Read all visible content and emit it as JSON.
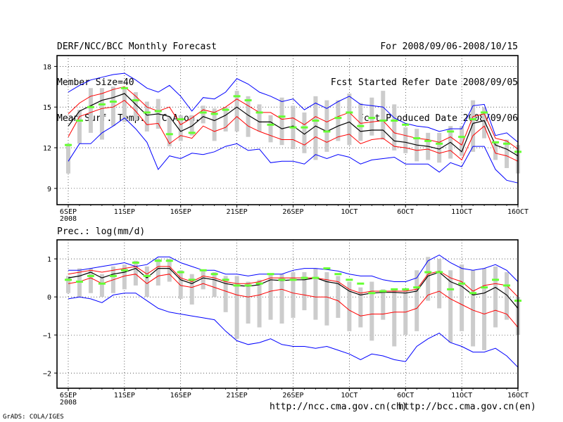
{
  "header": {
    "left_lines": [
      "DERF/NCC/BCC Monthly Forecast",
      "Member Size=40",
      "Mean Surf. Temp.: °C Anom."
    ],
    "right_lines": [
      "For 2008/09/06-2008/10/15",
      "Fcst Started Refer Date 2008/09/05",
      "Fcst Produced Date 2008/09/06"
    ]
  },
  "footer": {
    "url1": "http://ncc.cma.gov.cn(ch)",
    "url2": "http://bcc.cma.gov.cn(en)",
    "credit": "GrADS: COLA/IGES"
  },
  "colors": {
    "mean": "#000000",
    "band": "#ff0000",
    "envelope": "#0000ff",
    "box": "#cccccc",
    "obs": "#66ff33"
  },
  "chart_data": [
    {
      "type": "line",
      "title": "Mean Surf. Temp.: °C Anom.",
      "x_tick_labels": [
        "6SEP",
        "11SEP",
        "16SEP",
        "21SEP",
        "26SEP",
        "1OCT",
        "6OCT",
        "11OCT",
        "16OCT"
      ],
      "x_sub_label": "2008",
      "x_tick_days": [
        0,
        5,
        10,
        15,
        20,
        25,
        30,
        35,
        40
      ],
      "xlim": [
        -1,
        40
      ],
      "ylim": [
        7.8,
        18.8
      ],
      "y_ticks": [
        9,
        12,
        15,
        18
      ],
      "y_tick_labels": [
        "9",
        "12",
        "15",
        "18"
      ],
      "grid": true,
      "series": [
        {
          "name": "max",
          "color": "#0000ff",
          "values": [
            16.1,
            16.6,
            17.0,
            17.2,
            17.4,
            17.5,
            17.0,
            16.4,
            16.1,
            16.6,
            15.8,
            14.7,
            15.7,
            15.6,
            16.1,
            17.1,
            16.7,
            16.1,
            15.8,
            15.4,
            15.6,
            14.8,
            15.3,
            14.9,
            15.4,
            15.8,
            15.2,
            15.1,
            15.0,
            14.2,
            13.8,
            13.6,
            13.5,
            13.2,
            13.4,
            13.4,
            15.1,
            15.2,
            12.9,
            13.1,
            12.4
          ]
        },
        {
          "name": "upper",
          "color": "#ff0000",
          "values": [
            14.5,
            15.3,
            15.8,
            16.0,
            16.3,
            16.5,
            15.8,
            15.0,
            14.7,
            15.0,
            13.7,
            14.2,
            14.8,
            14.6,
            15.0,
            15.6,
            15.1,
            14.6,
            14.6,
            14.1,
            14.2,
            13.7,
            14.3,
            13.9,
            14.3,
            14.6,
            13.8,
            13.9,
            14.0,
            13.1,
            12.9,
            12.7,
            12.6,
            12.4,
            12.8,
            12.2,
            14.3,
            14.5,
            12.7,
            12.5,
            11.9
          ]
        },
        {
          "name": "mean",
          "color": "#000000",
          "values": [
            13.6,
            14.7,
            15.1,
            15.5,
            15.7,
            16.0,
            15.2,
            14.4,
            14.5,
            14.3,
            13.2,
            13.6,
            14.3,
            14.0,
            14.4,
            15.0,
            14.4,
            13.9,
            13.9,
            13.4,
            13.6,
            13.0,
            13.6,
            13.2,
            13.6,
            13.9,
            13.2,
            13.3,
            13.3,
            12.5,
            12.4,
            12.2,
            12.1,
            11.9,
            12.4,
            11.7,
            13.8,
            14.0,
            12.2,
            11.9,
            11.4
          ]
        },
        {
          "name": "lower",
          "color": "#ff0000",
          "values": [
            12.8,
            14.3,
            14.6,
            14.9,
            15.0,
            15.5,
            14.7,
            13.7,
            13.8,
            12.3,
            12.9,
            12.7,
            13.6,
            13.2,
            13.5,
            14.3,
            13.6,
            13.2,
            12.9,
            12.6,
            12.6,
            12.2,
            12.8,
            12.4,
            12.8,
            13.0,
            12.3,
            12.6,
            12.7,
            12.1,
            12.0,
            11.8,
            11.9,
            11.6,
            11.8,
            11.1,
            12.9,
            13.6,
            11.6,
            11.4,
            11.0
          ]
        },
        {
          "name": "min",
          "color": "#0000ff",
          "values": [
            11.0,
            12.3,
            12.3,
            13.1,
            13.6,
            14.2,
            13.4,
            12.4,
            10.4,
            11.4,
            11.2,
            11.6,
            11.5,
            11.7,
            12.1,
            12.3,
            11.8,
            11.9,
            10.9,
            11.0,
            11.0,
            10.8,
            11.5,
            11.2,
            11.5,
            11.3,
            10.8,
            11.1,
            11.2,
            11.3,
            10.8,
            10.8,
            10.8,
            10.2,
            10.9,
            10.6,
            12.1,
            12.1,
            10.4,
            9.6,
            9.4
          ]
        }
      ],
      "box_ranges": [
        [
          10.1,
          12.3
        ],
        [
          12.3,
          14.8
        ],
        [
          13.1,
          16.4
        ],
        [
          12.6,
          16.4
        ],
        [
          13.6,
          16.5
        ],
        [
          13.9,
          16.4
        ],
        [
          14.0,
          16.1
        ],
        [
          13.2,
          15.4
        ],
        [
          13.4,
          15.6
        ],
        [
          12.1,
          14.3
        ],
        [
          12.5,
          14.4
        ],
        [
          12.9,
          14.4
        ],
        [
          13.8,
          15.1
        ],
        [
          12.5,
          14.9
        ],
        [
          13.2,
          15.0
        ],
        [
          13.2,
          16.2
        ],
        [
          12.8,
          15.8
        ],
        [
          13.2,
          15.2
        ],
        [
          12.4,
          14.4
        ],
        [
          12.2,
          15.7
        ],
        [
          11.9,
          15.1
        ],
        [
          11.6,
          14.6
        ],
        [
          11.1,
          15.8
        ],
        [
          11.7,
          15.5
        ],
        [
          12.5,
          15.5
        ],
        [
          12.2,
          16.0
        ],
        [
          12.5,
          15.3
        ],
        [
          12.9,
          15.7
        ],
        [
          12.6,
          16.2
        ],
        [
          11.8,
          15.2
        ],
        [
          11.6,
          13.5
        ],
        [
          11.0,
          13.4
        ],
        [
          11.1,
          13.1
        ],
        [
          10.9,
          13.1
        ],
        [
          11.2,
          13.6
        ],
        [
          11.4,
          13.6
        ],
        [
          11.7,
          15.5
        ],
        [
          12.7,
          15.0
        ],
        [
          11.1,
          12.4
        ],
        [
          10.5,
          12.6
        ],
        [
          10.1,
          12.2
        ]
      ],
      "obs_values": [
        12.2,
        14.0,
        15.0,
        15.2,
        15.4,
        16.4,
        15.5,
        14.6,
        14.7,
        13.0,
        14.1,
        13.1,
        14.6,
        14.5,
        14.8,
        15.8,
        15.5,
        14.6,
        13.7,
        14.3,
        13.5,
        13.5,
        14.0,
        13.2,
        14.2,
        14.6,
        13.6,
        14.2,
        14.0,
        14.0,
        13.7,
        12.7,
        12.5,
        12.3,
        13.2,
        12.8,
        14.1,
        14.6,
        12.4,
        12.3,
        11.7
      ]
    },
    {
      "type": "line",
      "title": "Prec.: log(mm/d)",
      "x_tick_labels": [
        "6SEP",
        "11SEP",
        "16SEP",
        "21SEP",
        "26SEP",
        "1OCT",
        "6OCT",
        "11OCT",
        "16OCT"
      ],
      "x_sub_label": "2008",
      "x_tick_days": [
        0,
        5,
        10,
        15,
        20,
        25,
        30,
        35,
        40
      ],
      "xlim": [
        -1,
        40
      ],
      "ylim": [
        -2.4,
        1.5
      ],
      "y_ticks": [
        -2,
        -1,
        0,
        1
      ],
      "y_tick_labels": [
        "−2",
        "−1",
        "0",
        "1"
      ],
      "grid": true,
      "series": [
        {
          "name": "max",
          "color": "#0000ff",
          "values": [
            0.7,
            0.7,
            0.75,
            0.8,
            0.85,
            0.9,
            0.8,
            0.85,
            1.05,
            1.05,
            0.9,
            0.8,
            0.7,
            0.7,
            0.6,
            0.6,
            0.55,
            0.6,
            0.6,
            0.6,
            0.7,
            0.75,
            0.75,
            0.72,
            0.68,
            0.6,
            0.55,
            0.55,
            0.45,
            0.4,
            0.4,
            0.5,
            0.95,
            1.1,
            0.9,
            0.75,
            0.7,
            0.75,
            0.85,
            0.7,
            0.4
          ]
        },
        {
          "name": "upper",
          "color": "#ff0000",
          "values": [
            0.6,
            0.65,
            0.7,
            0.65,
            0.7,
            0.75,
            0.8,
            0.6,
            0.8,
            0.8,
            0.5,
            0.4,
            0.55,
            0.5,
            0.4,
            0.35,
            0.35,
            0.4,
            0.5,
            0.5,
            0.5,
            0.5,
            0.5,
            0.45,
            0.4,
            0.2,
            0.1,
            0.15,
            0.15,
            0.15,
            0.15,
            0.2,
            0.6,
            0.68,
            0.5,
            0.4,
            0.15,
            0.3,
            0.35,
            0.3,
            0.0
          ]
        },
        {
          "name": "mean",
          "color": "#000000",
          "values": [
            0.5,
            0.55,
            0.65,
            0.5,
            0.6,
            0.65,
            0.75,
            0.5,
            0.75,
            0.75,
            0.45,
            0.35,
            0.5,
            0.45,
            0.35,
            0.3,
            0.28,
            0.32,
            0.45,
            0.43,
            0.45,
            0.45,
            0.5,
            0.4,
            0.35,
            0.15,
            0.05,
            0.1,
            0.12,
            0.12,
            0.1,
            0.15,
            0.55,
            0.65,
            0.4,
            0.28,
            0.05,
            0.1,
            0.25,
            0.05,
            -0.3
          ]
        },
        {
          "name": "lower",
          "color": "#ff0000",
          "values": [
            0.35,
            0.4,
            0.5,
            0.35,
            0.45,
            0.55,
            0.6,
            0.35,
            0.55,
            0.6,
            0.3,
            0.25,
            0.35,
            0.25,
            0.15,
            0.05,
            0.0,
            0.05,
            0.15,
            0.2,
            0.1,
            0.05,
            0.0,
            0.0,
            -0.1,
            -0.35,
            -0.5,
            -0.45,
            -0.45,
            -0.4,
            -0.4,
            -0.3,
            0.05,
            0.15,
            -0.05,
            -0.2,
            -0.35,
            -0.45,
            -0.35,
            -0.45,
            -0.8
          ]
        },
        {
          "name": "min",
          "color": "#0000ff",
          "values": [
            -0.05,
            0.0,
            -0.05,
            -0.15,
            0.05,
            0.1,
            0.1,
            -0.1,
            -0.3,
            -0.4,
            -0.45,
            -0.5,
            -0.55,
            -0.6,
            -0.9,
            -1.15,
            -1.25,
            -1.2,
            -1.1,
            -1.25,
            -1.3,
            -1.3,
            -1.35,
            -1.3,
            -1.4,
            -1.5,
            -1.65,
            -1.5,
            -1.55,
            -1.65,
            -1.7,
            -1.3,
            -1.1,
            -0.95,
            -1.2,
            -1.3,
            -1.45,
            -1.45,
            -1.35,
            -1.55,
            -1.85
          ]
        },
        {
          "name": "spare",
          "color": "#0000ff",
          "values": []
        }
      ],
      "box_ranges": [
        [
          0.1,
          0.55
        ],
        [
          0.0,
          0.75
        ],
        [
          0.1,
          0.75
        ],
        [
          0.0,
          0.6
        ],
        [
          0.1,
          0.8
        ],
        [
          0.2,
          0.85
        ],
        [
          0.3,
          0.95
        ],
        [
          0.0,
          0.8
        ],
        [
          0.3,
          1.0
        ],
        [
          0.4,
          1.0
        ],
        [
          -0.05,
          0.7
        ],
        [
          -0.2,
          0.6
        ],
        [
          0.2,
          0.7
        ],
        [
          0.0,
          0.65
        ],
        [
          -0.4,
          0.55
        ],
        [
          -1.1,
          0.55
        ],
        [
          -0.7,
          0.4
        ],
        [
          -0.8,
          0.45
        ],
        [
          -0.6,
          0.6
        ],
        [
          -0.7,
          0.6
        ],
        [
          -0.55,
          0.65
        ],
        [
          -0.35,
          0.65
        ],
        [
          -0.6,
          0.75
        ],
        [
          -0.75,
          0.65
        ],
        [
          -0.55,
          0.55
        ],
        [
          -0.9,
          0.4
        ],
        [
          -0.8,
          0.25
        ],
        [
          -1.15,
          0.4
        ],
        [
          -0.6,
          0.2
        ],
        [
          -1.3,
          0.2
        ],
        [
          -1.0,
          0.2
        ],
        [
          -0.9,
          0.7
        ],
        [
          -0.1,
          1.05
        ],
        [
          -0.3,
          1.0
        ],
        [
          -1.2,
          0.7
        ],
        [
          -0.9,
          0.85
        ],
        [
          -1.3,
          0.7
        ],
        [
          -1.4,
          0.75
        ],
        [
          -0.8,
          0.8
        ],
        [
          -0.6,
          0.65
        ],
        [
          -1.0,
          0.0
        ]
      ],
      "obs_values": [
        0.45,
        0.4,
        0.55,
        0.35,
        0.55,
        0.7,
        0.9,
        0.55,
        0.95,
        0.95,
        0.65,
        0.45,
        0.7,
        0.6,
        0.45,
        0.3,
        0.3,
        0.35,
        0.6,
        0.45,
        0.45,
        0.5,
        0.5,
        0.75,
        0.6,
        0.45,
        0.35,
        0.1,
        0.15,
        0.2,
        0.2,
        0.25,
        0.65,
        0.65,
        0.2,
        0.35,
        0.1,
        0.25,
        0.45,
        0.3,
        -0.1
      ]
    }
  ]
}
